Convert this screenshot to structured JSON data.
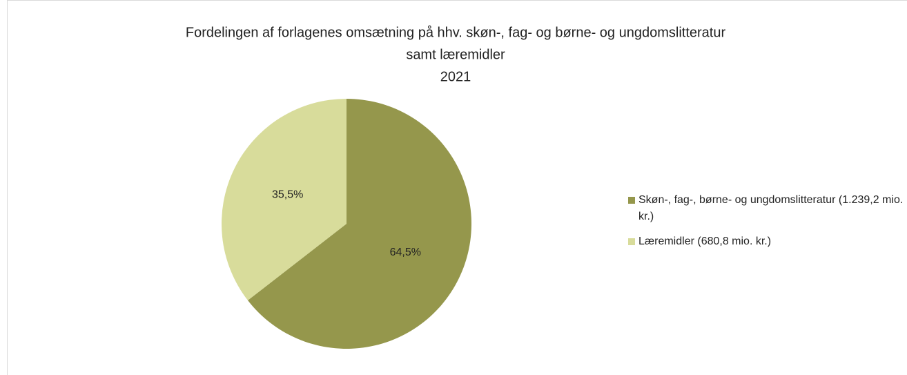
{
  "chart_data": {
    "type": "pie",
    "title": [
      "Fordelingen af forlagenes omsætning på hhv. skøn-, fag- og børne- og ungdomslitteratur",
      "samt læremidler",
      "2021"
    ],
    "categories": [
      "Skøn-, fag-, børne- og ungdomslitteratur (1.239,2 mio. kr.)",
      "Læremidler (680,8 mio. kr.)"
    ],
    "values": [
      64.5,
      35.5
    ],
    "value_labels": [
      "64,5%",
      "35,5%"
    ],
    "colors": [
      "#95974c",
      "#d8dc9b"
    ],
    "legend": "right"
  }
}
